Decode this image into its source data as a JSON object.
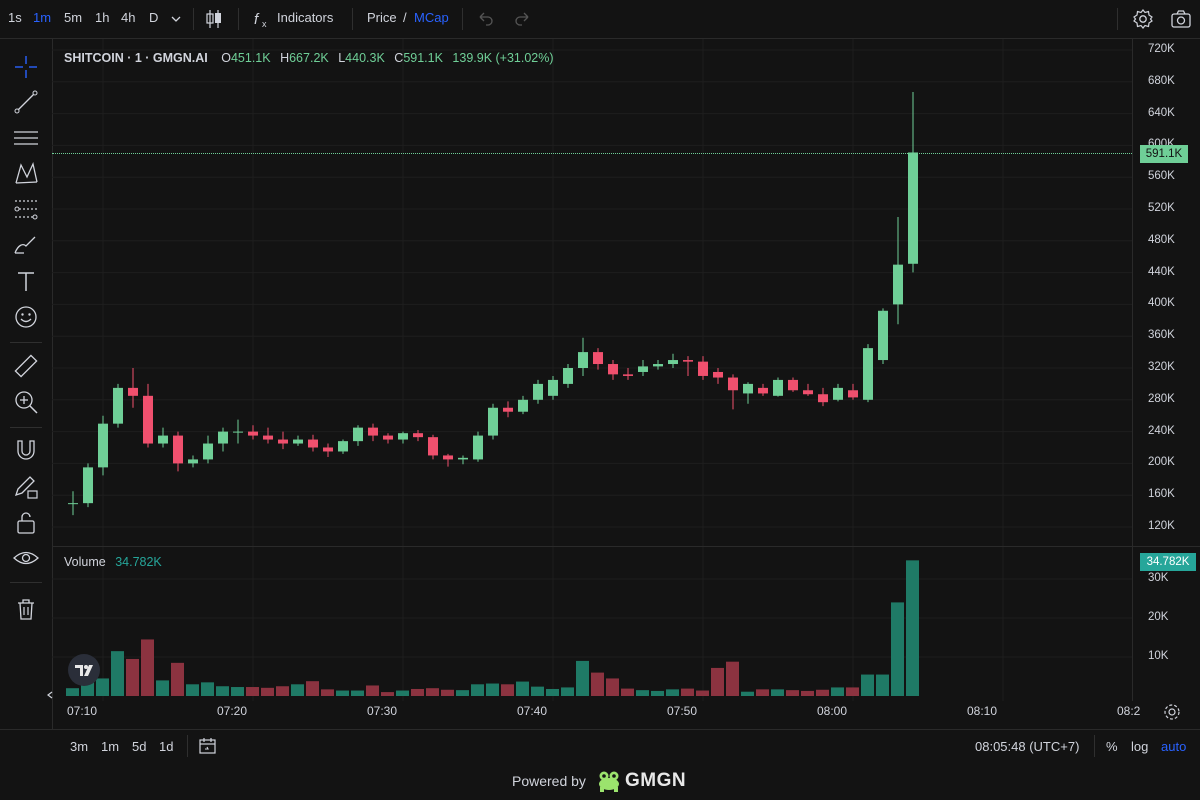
{
  "toolbar": {
    "intervals": [
      "1s",
      "1m",
      "5m",
      "1h",
      "4h",
      "D"
    ],
    "active_interval": "1m",
    "indicators_label": "Indicators",
    "price_label": "Price",
    "slash": "/",
    "mcap_label": "MCap"
  },
  "legend": {
    "symbol": "SHITCOIN · 1 · GMGN.AI",
    "open_key": "O",
    "open": "451.1K",
    "high_key": "H",
    "high": "667.2K",
    "low_key": "L",
    "low": "440.3K",
    "close_key": "C",
    "close": "591.1K",
    "change": "139.9K (+31.02%)"
  },
  "volume_legend": {
    "label": "Volume",
    "value": "34.782K"
  },
  "price_axis": {
    "ticks": [
      "720K",
      "680K",
      "640K",
      "600K",
      "560K",
      "520K",
      "480K",
      "440K",
      "400K",
      "360K",
      "320K",
      "280K",
      "240K",
      "200K",
      "160K",
      "120K"
    ],
    "current": "591.1K"
  },
  "volume_axis": {
    "ticks": [
      "30K",
      "20K",
      "10K"
    ],
    "current": "34.782K"
  },
  "time_axis": {
    "ticks": [
      "07:10",
      "07:20",
      "07:30",
      "07:40",
      "07:50",
      "08:00",
      "08:10",
      "08:2"
    ]
  },
  "bottom": {
    "ranges": [
      "3m",
      "1m",
      "5d",
      "1d"
    ],
    "clock": "08:05:48 (UTC+7)",
    "percent": "%",
    "log": "log",
    "auto": "auto"
  },
  "footer": {
    "powered": "Powered by",
    "brand": "GMGN"
  },
  "colors": {
    "up": "#6fcf97",
    "down": "#f0506e",
    "vol_up": "#1f7a66",
    "vol_down": "#8c3340",
    "accent": "#2962ff"
  },
  "chart_data": {
    "type": "candlestick",
    "x_start": "07:08",
    "interval": "1m",
    "ylim": [
      100000,
      730000
    ],
    "volume_ylim": [
      0,
      35000
    ],
    "candles": [
      {
        "o": 150000,
        "h": 165000,
        "l": 135000,
        "c": 150000,
        "v": 2000
      },
      {
        "o": 150000,
        "h": 200000,
        "l": 145000,
        "c": 195000,
        "v": 4500
      },
      {
        "o": 195000,
        "h": 260000,
        "l": 185000,
        "c": 250000,
        "v": 4500
      },
      {
        "o": 250000,
        "h": 300000,
        "l": 245000,
        "c": 295000,
        "v": 11500
      },
      {
        "o": 295000,
        "h": 320000,
        "l": 270000,
        "c": 285000,
        "v": 9500
      },
      {
        "o": 285000,
        "h": 300000,
        "l": 220000,
        "c": 225000,
        "v": 14500
      },
      {
        "o": 225000,
        "h": 245000,
        "l": 220000,
        "c": 235000,
        "v": 4000
      },
      {
        "o": 235000,
        "h": 240000,
        "l": 190000,
        "c": 200000,
        "v": 8500
      },
      {
        "o": 200000,
        "h": 210000,
        "l": 195000,
        "c": 205000,
        "v": 3000
      },
      {
        "o": 205000,
        "h": 235000,
        "l": 200000,
        "c": 225000,
        "v": 3500
      },
      {
        "o": 225000,
        "h": 245000,
        "l": 215000,
        "c": 240000,
        "v": 2500
      },
      {
        "o": 240000,
        "h": 255000,
        "l": 225000,
        "c": 240000,
        "v": 2300
      },
      {
        "o": 240000,
        "h": 248000,
        "l": 230000,
        "c": 235000,
        "v": 2300
      },
      {
        "o": 235000,
        "h": 245000,
        "l": 225000,
        "c": 230000,
        "v": 2100
      },
      {
        "o": 230000,
        "h": 240000,
        "l": 218000,
        "c": 225000,
        "v": 2500
      },
      {
        "o": 225000,
        "h": 235000,
        "l": 222000,
        "c": 230000,
        "v": 3000
      },
      {
        "o": 230000,
        "h": 236000,
        "l": 215000,
        "c": 220000,
        "v": 3800
      },
      {
        "o": 220000,
        "h": 225000,
        "l": 208000,
        "c": 215000,
        "v": 1700
      },
      {
        "o": 215000,
        "h": 230000,
        "l": 212000,
        "c": 228000,
        "v": 1400
      },
      {
        "o": 228000,
        "h": 248000,
        "l": 222000,
        "c": 245000,
        "v": 1400
      },
      {
        "o": 245000,
        "h": 250000,
        "l": 228000,
        "c": 235000,
        "v": 2700
      },
      {
        "o": 235000,
        "h": 238000,
        "l": 225000,
        "c": 230000,
        "v": 1000
      },
      {
        "o": 230000,
        "h": 240000,
        "l": 225000,
        "c": 238000,
        "v": 1400
      },
      {
        "o": 238000,
        "h": 242000,
        "l": 228000,
        "c": 233000,
        "v": 1800
      },
      {
        "o": 233000,
        "h": 236000,
        "l": 205000,
        "c": 210000,
        "v": 2000
      },
      {
        "o": 210000,
        "h": 212000,
        "l": 196000,
        "c": 205000,
        "v": 1600
      },
      {
        "o": 205000,
        "h": 210000,
        "l": 199000,
        "c": 207000,
        "v": 1500
      },
      {
        "o": 205000,
        "h": 240000,
        "l": 202000,
        "c": 235000,
        "v": 3000
      },
      {
        "o": 235000,
        "h": 275000,
        "l": 230000,
        "c": 270000,
        "v": 3200
      },
      {
        "o": 270000,
        "h": 278000,
        "l": 258000,
        "c": 265000,
        "v": 3000
      },
      {
        "o": 265000,
        "h": 285000,
        "l": 262000,
        "c": 280000,
        "v": 3700
      },
      {
        "o": 280000,
        "h": 305000,
        "l": 275000,
        "c": 300000,
        "v": 2400
      },
      {
        "o": 285000,
        "h": 310000,
        "l": 280000,
        "c": 305000,
        "v": 1800
      },
      {
        "o": 300000,
        "h": 325000,
        "l": 295000,
        "c": 320000,
        "v": 2200
      },
      {
        "o": 320000,
        "h": 358000,
        "l": 310000,
        "c": 340000,
        "v": 9000
      },
      {
        "o": 340000,
        "h": 345000,
        "l": 318000,
        "c": 325000,
        "v": 6000
      },
      {
        "o": 325000,
        "h": 330000,
        "l": 305000,
        "c": 312000,
        "v": 4500
      },
      {
        "o": 312000,
        "h": 320000,
        "l": 305000,
        "c": 310000,
        "v": 1900
      },
      {
        "o": 315000,
        "h": 330000,
        "l": 310000,
        "c": 322000,
        "v": 1500
      },
      {
        "o": 322000,
        "h": 330000,
        "l": 318000,
        "c": 325000,
        "v": 1300
      },
      {
        "o": 325000,
        "h": 338000,
        "l": 320000,
        "c": 330000,
        "v": 1700
      },
      {
        "o": 330000,
        "h": 335000,
        "l": 310000,
        "c": 328000,
        "v": 1900
      },
      {
        "o": 328000,
        "h": 335000,
        "l": 305000,
        "c": 310000,
        "v": 1400
      },
      {
        "o": 315000,
        "h": 320000,
        "l": 300000,
        "c": 308000,
        "v": 7200
      },
      {
        "o": 308000,
        "h": 312000,
        "l": 268000,
        "c": 292000,
        "v": 8800
      },
      {
        "o": 288000,
        "h": 302000,
        "l": 275000,
        "c": 300000,
        "v": 1100
      },
      {
        "o": 295000,
        "h": 300000,
        "l": 285000,
        "c": 288000,
        "v": 1700
      },
      {
        "o": 285000,
        "h": 308000,
        "l": 284000,
        "c": 305000,
        "v": 1700
      },
      {
        "o": 305000,
        "h": 308000,
        "l": 290000,
        "c": 292000,
        "v": 1500
      },
      {
        "o": 292000,
        "h": 300000,
        "l": 285000,
        "c": 287000,
        "v": 1300
      },
      {
        "o": 287000,
        "h": 295000,
        "l": 272000,
        "c": 277000,
        "v": 1600
      },
      {
        "o": 280000,
        "h": 300000,
        "l": 278000,
        "c": 295000,
        "v": 2200
      },
      {
        "o": 292000,
        "h": 300000,
        "l": 280000,
        "c": 283000,
        "v": 2200
      },
      {
        "o": 280000,
        "h": 350000,
        "l": 277000,
        "c": 345000,
        "v": 5500
      },
      {
        "o": 330000,
        "h": 395000,
        "l": 325000,
        "c": 392000,
        "v": 5500
      },
      {
        "o": 400000,
        "h": 510000,
        "l": 375000,
        "c": 450000,
        "v": 24000
      },
      {
        "o": 451100,
        "h": 667200,
        "l": 440300,
        "c": 591100,
        "v": 34782
      }
    ]
  }
}
